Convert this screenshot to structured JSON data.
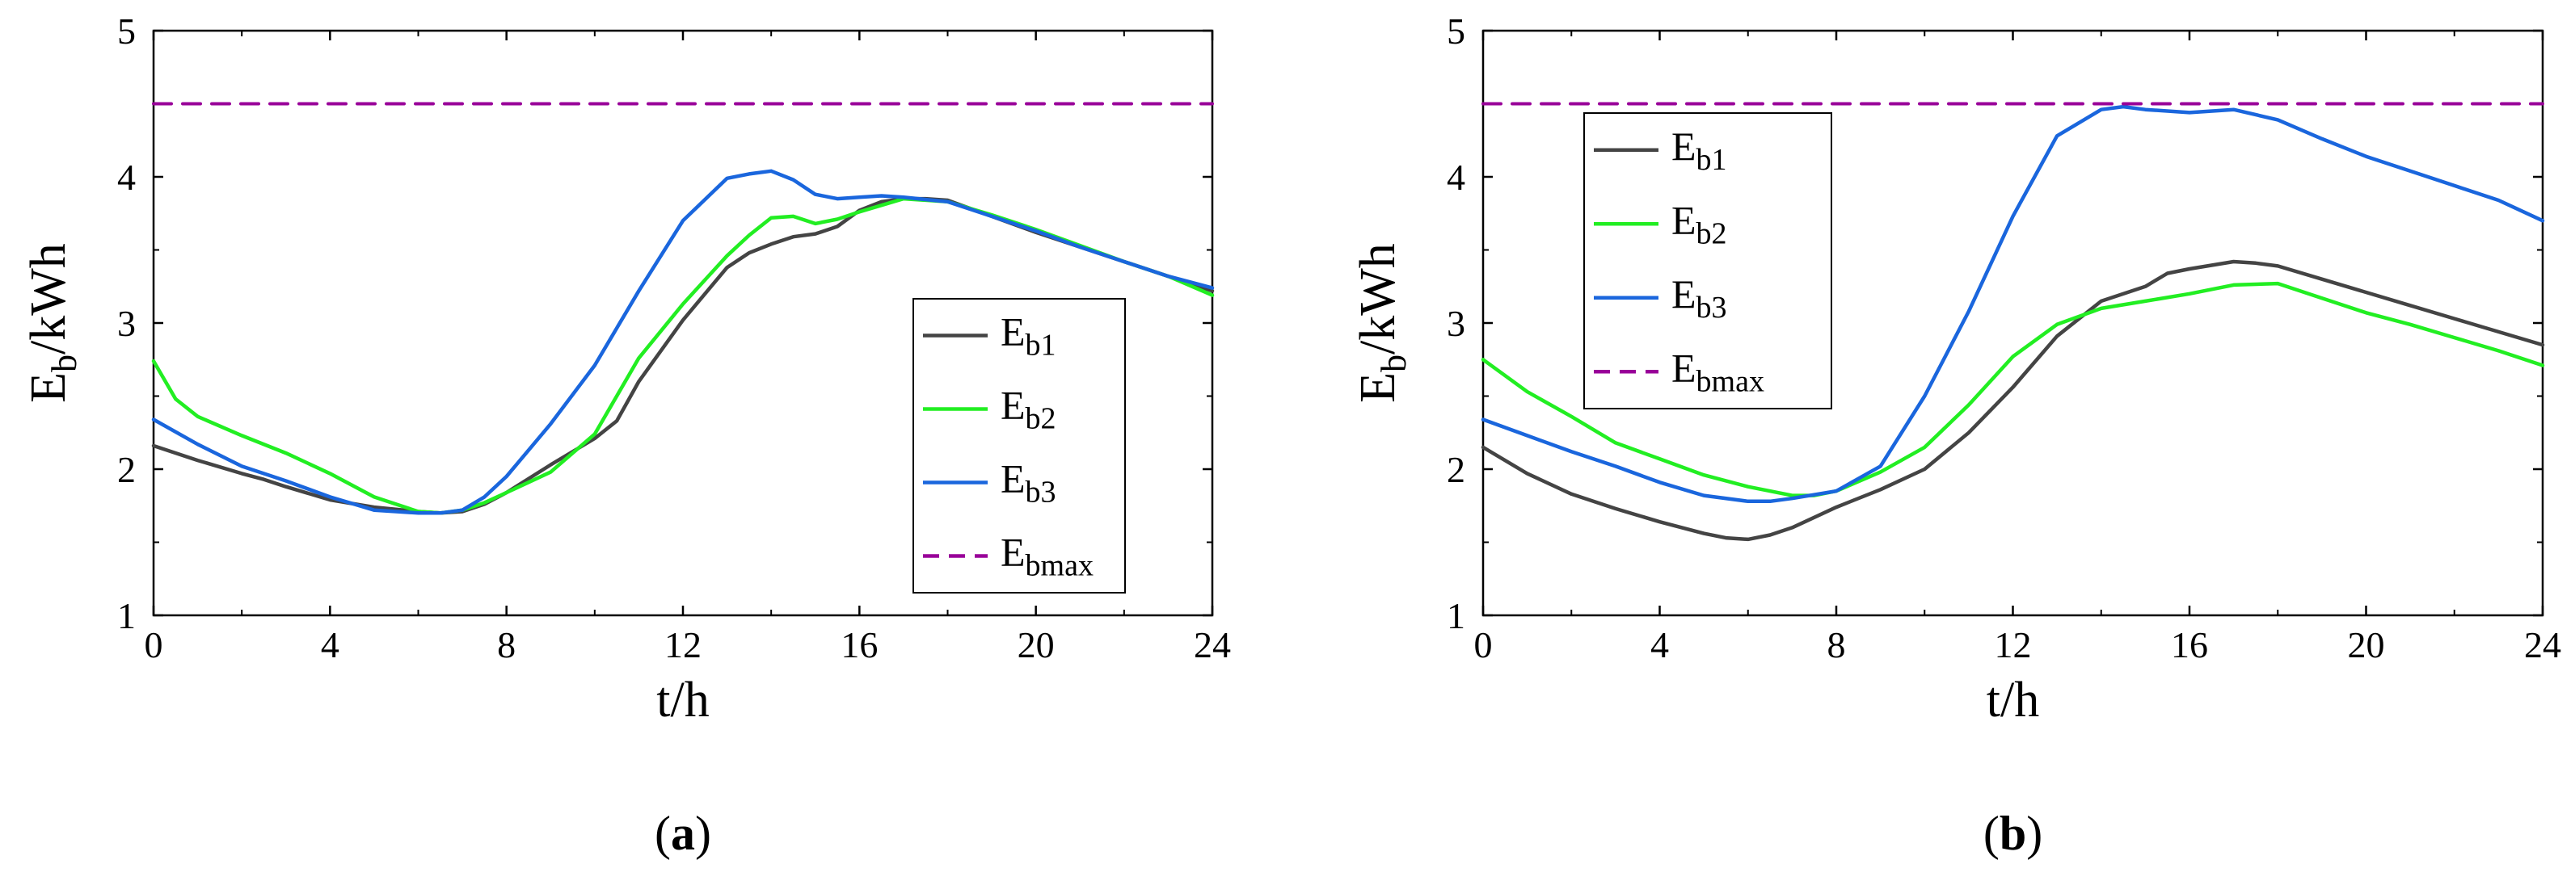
{
  "chart_data": [
    {
      "type": "line",
      "panel_label": "a",
      "xlabel": "t/h",
      "ylabel": {
        "main": "E",
        "sub": "b",
        "rest": "/kWh"
      },
      "xlim": [
        0,
        24
      ],
      "ylim": [
        1,
        5
      ],
      "xticks": [
        0,
        4,
        8,
        12,
        16,
        20,
        24
      ],
      "yticks": [
        1,
        2,
        3,
        4,
        5
      ],
      "legend_position": "lower-right",
      "series": [
        {
          "name": "Eb1",
          "main": "E",
          "sub": "b1",
          "color": "#444444",
          "dash": false,
          "x": [
            0,
            1,
            2,
            2.5,
            3,
            4,
            5,
            6,
            6.5,
            7,
            7.5,
            8,
            9,
            10,
            10.5,
            11,
            12,
            13,
            13.5,
            14,
            14.5,
            15,
            15.5,
            16,
            16.5,
            17,
            17.5,
            18,
            19,
            20,
            21,
            22,
            23,
            24
          ],
          "y": [
            2.16,
            2.06,
            1.97,
            1.93,
            1.88,
            1.79,
            1.74,
            1.71,
            1.7,
            1.71,
            1.76,
            1.84,
            2.03,
            2.21,
            2.33,
            2.6,
            3.02,
            3.38,
            3.48,
            3.54,
            3.59,
            3.61,
            3.66,
            3.77,
            3.83,
            3.85,
            3.85,
            3.84,
            3.73,
            3.62,
            3.52,
            3.42,
            3.32,
            3.22
          ]
        },
        {
          "name": "Eb2",
          "main": "E",
          "sub": "b2",
          "color": "#22ee22",
          "dash": false,
          "x": [
            0,
            0.5,
            1,
            2,
            3,
            4,
            5,
            6,
            6.5,
            7,
            7.5,
            8,
            9,
            10,
            10.5,
            11,
            12,
            13,
            13.5,
            14,
            14.5,
            15,
            15.5,
            16,
            17,
            18,
            19,
            20,
            21,
            22,
            23,
            24
          ],
          "y": [
            2.74,
            2.48,
            2.36,
            2.23,
            2.11,
            1.97,
            1.81,
            1.71,
            1.7,
            1.72,
            1.77,
            1.84,
            1.98,
            2.24,
            2.5,
            2.76,
            3.13,
            3.46,
            3.6,
            3.72,
            3.73,
            3.68,
            3.71,
            3.76,
            3.85,
            3.83,
            3.74,
            3.64,
            3.53,
            3.42,
            3.32,
            3.19
          ]
        },
        {
          "name": "Eb3",
          "main": "E",
          "sub": "b3",
          "color": "#1a66dd",
          "dash": false,
          "x": [
            0,
            1,
            2,
            3,
            4,
            5,
            6,
            6.5,
            7,
            7.5,
            8,
            9,
            10,
            11,
            12,
            13,
            13.5,
            14,
            14.5,
            15,
            15.5,
            16,
            16.5,
            17,
            18,
            19,
            20,
            21,
            22,
            23,
            24
          ],
          "y": [
            2.34,
            2.17,
            2.02,
            1.92,
            1.81,
            1.72,
            1.7,
            1.7,
            1.72,
            1.81,
            1.95,
            2.31,
            2.71,
            3.22,
            3.7,
            3.99,
            4.02,
            4.04,
            3.98,
            3.88,
            3.85,
            3.86,
            3.87,
            3.86,
            3.83,
            3.73,
            3.63,
            3.52,
            3.42,
            3.32,
            3.24
          ]
        },
        {
          "name": "Ebmax",
          "main": "E",
          "sub": "bmax",
          "color": "#990099",
          "dash": true,
          "x": [
            0,
            24
          ],
          "y": [
            4.5,
            4.5
          ]
        }
      ]
    },
    {
      "type": "line",
      "panel_label": "b",
      "xlabel": "t/h",
      "ylabel": {
        "main": "E",
        "sub": "b",
        "rest": "/kWh"
      },
      "xlim": [
        0,
        24
      ],
      "ylim": [
        1,
        5
      ],
      "xticks": [
        0,
        4,
        8,
        12,
        16,
        20,
        24
      ],
      "yticks": [
        1,
        2,
        3,
        4,
        5
      ],
      "legend_position": "upper-left",
      "series": [
        {
          "name": "Eb1",
          "main": "E",
          "sub": "b1",
          "color": "#444444",
          "dash": false,
          "x": [
            0,
            1,
            2,
            3,
            4,
            5,
            5.5,
            6,
            6.5,
            7,
            8,
            9,
            10,
            11,
            12,
            13,
            14,
            15,
            15.5,
            16,
            17,
            17.5,
            18,
            19,
            20,
            21,
            22,
            23,
            24
          ],
          "y": [
            2.15,
            1.97,
            1.83,
            1.73,
            1.64,
            1.56,
            1.53,
            1.52,
            1.55,
            1.6,
            1.74,
            1.86,
            2.0,
            2.25,
            2.56,
            2.91,
            3.15,
            3.25,
            3.34,
            3.37,
            3.42,
            3.41,
            3.39,
            3.3,
            3.21,
            3.12,
            3.03,
            2.94,
            2.85
          ]
        },
        {
          "name": "Eb2",
          "main": "E",
          "sub": "b2",
          "color": "#22ee22",
          "dash": false,
          "x": [
            0,
            1,
            2,
            3,
            4,
            5,
            6,
            7,
            7.5,
            8,
            9,
            10,
            11,
            12,
            13,
            14,
            15,
            16,
            17,
            18,
            19,
            20,
            21,
            22,
            23,
            24
          ],
          "y": [
            2.75,
            2.53,
            2.36,
            2.18,
            2.07,
            1.96,
            1.88,
            1.82,
            1.82,
            1.85,
            1.98,
            2.15,
            2.44,
            2.77,
            2.99,
            3.1,
            3.15,
            3.2,
            3.26,
            3.27,
            3.17,
            3.07,
            2.99,
            2.9,
            2.81,
            2.71
          ]
        },
        {
          "name": "Eb3",
          "main": "E",
          "sub": "b3",
          "color": "#1a66dd",
          "dash": false,
          "x": [
            0,
            1,
            2,
            3,
            4,
            5,
            6,
            6.5,
            7,
            8,
            9,
            10,
            11,
            12,
            13,
            14,
            14.5,
            15,
            16,
            17,
            18,
            19,
            20,
            21,
            22,
            23,
            24
          ],
          "y": [
            2.34,
            2.23,
            2.12,
            2.02,
            1.91,
            1.82,
            1.78,
            1.78,
            1.8,
            1.85,
            2.02,
            2.5,
            3.08,
            3.73,
            4.28,
            4.46,
            4.48,
            4.46,
            4.44,
            4.46,
            4.39,
            4.26,
            4.14,
            4.04,
            3.94,
            3.84,
            3.7
          ]
        },
        {
          "name": "Ebmax",
          "main": "E",
          "sub": "bmax",
          "color": "#990099",
          "dash": true,
          "x": [
            0,
            24
          ],
          "y": [
            4.5,
            4.5
          ]
        }
      ]
    }
  ]
}
